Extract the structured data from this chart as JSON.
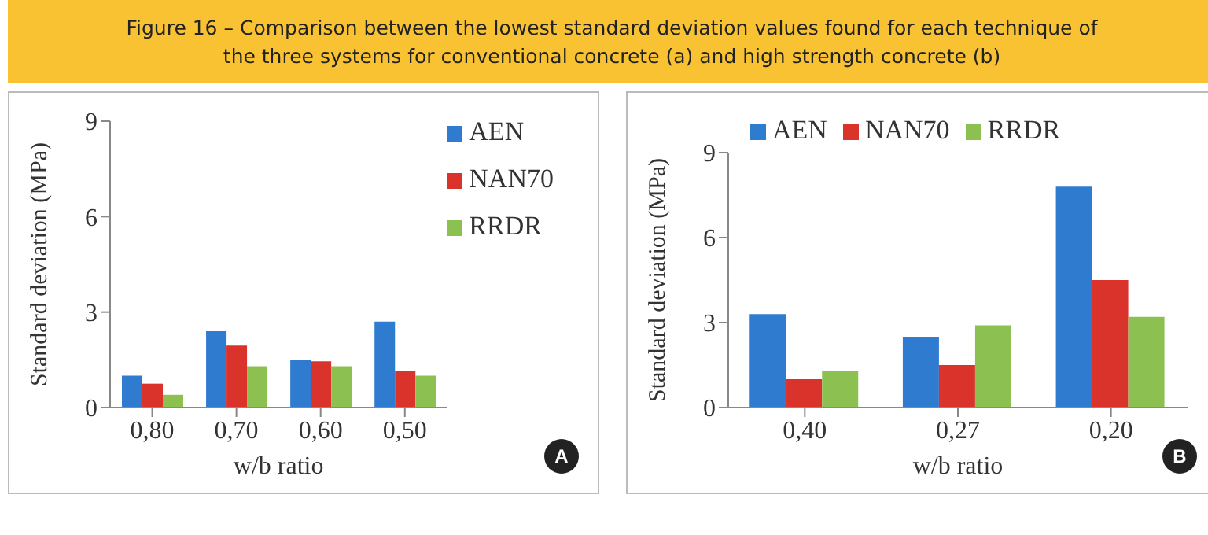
{
  "chart_data": [
    {
      "type": "bar",
      "title": "Figure 16 – Comparison between the lowest standard deviation values found for each technique of the three systems for conventional concrete (a) and high strength concrete (b)",
      "categories": [
        "0,80",
        "0,70",
        "0,60",
        "0,50"
      ],
      "xlabel": "w/b ratio",
      "ylabel": "Standard deviation (MPa)",
      "ylim": [
        0,
        9
      ],
      "yticks": [
        0,
        3,
        6,
        9
      ],
      "legend": "top right",
      "annotations": [
        "A"
      ],
      "series": [
        {
          "name": "AEN",
          "color": "#2e7bcf",
          "values": [
            1.0,
            2.4,
            1.5,
            2.7
          ]
        },
        {
          "name": "NAN70",
          "color": "#d9332c",
          "values": [
            0.75,
            1.95,
            1.45,
            1.15
          ]
        },
        {
          "name": "RRDR",
          "color": "#8cc152",
          "values": [
            0.4,
            1.3,
            1.3,
            1.0
          ]
        }
      ]
    },
    {
      "type": "bar",
      "categories": [
        "0,40",
        "0,27",
        "0,20"
      ],
      "xlabel": "w/b ratio",
      "ylabel": "Standard deviation (MPa)",
      "ylim": [
        0,
        9
      ],
      "yticks": [
        0,
        3,
        6,
        9
      ],
      "legend": "top left",
      "annotations": [
        "B"
      ],
      "series": [
        {
          "name": "AEN",
          "color": "#2e7bcf",
          "values": [
            3.3,
            2.5,
            7.8
          ]
        },
        {
          "name": "NAN70",
          "color": "#d9332c",
          "values": [
            1.0,
            1.5,
            4.5
          ]
        },
        {
          "name": "RRDR",
          "color": "#8cc152",
          "values": [
            1.3,
            2.9,
            3.2
          ]
        }
      ]
    }
  ]
}
